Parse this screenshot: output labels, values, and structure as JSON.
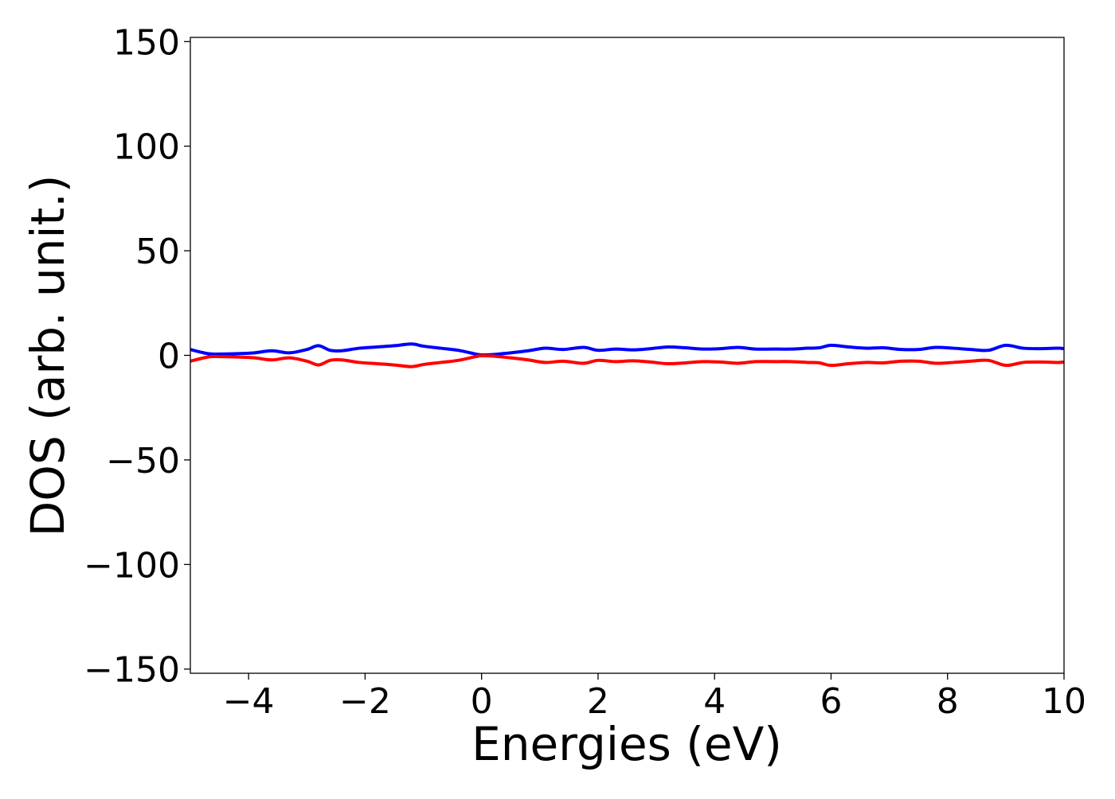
{
  "chart_data": {
    "type": "line",
    "title": "",
    "xlabel": "Energies (eV)",
    "ylabel": "DOS (arb. unit.)",
    "xlim": [
      -5,
      10
    ],
    "ylim": [
      -152,
      152
    ],
    "grid": false,
    "legend": "none",
    "xticks": [
      -4,
      -2,
      0,
      2,
      4,
      6,
      8,
      10
    ],
    "xtick_labels": [
      "−4",
      "−2",
      "0",
      "2",
      "4",
      "6",
      "8",
      "10"
    ],
    "yticks": [
      150,
      100,
      50,
      0,
      -50,
      -100,
      -150
    ],
    "ytick_labels": [
      "150",
      "100",
      "50",
      "0",
      "−50",
      "−100",
      "−150"
    ],
    "series": [
      {
        "color": "#0000ff",
        "x": [
          -5.0,
          -4.7,
          -4.5,
          -4.2,
          -3.9,
          -3.6,
          -3.3,
          -3.0,
          -2.8,
          -2.6,
          -2.4,
          -2.1,
          -1.8,
          -1.5,
          -1.2,
          -1.0,
          -0.7,
          -0.4,
          -0.1,
          0.0,
          0.2,
          0.5,
          0.8,
          1.1,
          1.4,
          1.75,
          2.0,
          2.3,
          2.6,
          2.9,
          3.2,
          3.5,
          3.8,
          4.1,
          4.4,
          4.7,
          5.0,
          5.3,
          5.6,
          5.8,
          6.0,
          6.3,
          6.6,
          6.9,
          7.2,
          7.5,
          7.8,
          8.1,
          8.4,
          8.7,
          9.0,
          9.3,
          9.6,
          9.9,
          10.0
        ],
        "y": [
          2.8,
          0.8,
          0.6,
          0.8,
          1.2,
          2.2,
          1.2,
          2.8,
          4.6,
          2.4,
          2.2,
          3.4,
          4.0,
          4.6,
          5.4,
          4.4,
          3.4,
          2.4,
          0.6,
          0.2,
          0.4,
          1.2,
          2.2,
          3.4,
          2.8,
          3.8,
          2.4,
          3.0,
          2.6,
          3.2,
          4.0,
          3.6,
          3.0,
          3.2,
          3.8,
          3.0,
          3.0,
          3.0,
          3.4,
          3.6,
          4.8,
          4.0,
          3.4,
          3.6,
          2.8,
          2.8,
          3.8,
          3.4,
          2.8,
          2.4,
          4.8,
          3.4,
          3.2,
          3.4,
          3.2
        ]
      },
      {
        "color": "#ff0000",
        "x": [
          -5.0,
          -4.7,
          -4.5,
          -4.2,
          -3.9,
          -3.6,
          -3.3,
          -3.0,
          -2.8,
          -2.6,
          -2.4,
          -2.1,
          -1.8,
          -1.5,
          -1.2,
          -1.0,
          -0.7,
          -0.4,
          -0.1,
          0.0,
          0.2,
          0.5,
          0.8,
          1.1,
          1.4,
          1.75,
          2.0,
          2.3,
          2.6,
          2.9,
          3.2,
          3.5,
          3.8,
          4.1,
          4.4,
          4.7,
          5.0,
          5.3,
          5.6,
          5.8,
          6.0,
          6.3,
          6.6,
          6.9,
          7.2,
          7.5,
          7.8,
          8.1,
          8.4,
          8.7,
          9.0,
          9.3,
          9.6,
          9.9,
          10.0
        ],
        "y": [
          -2.8,
          -0.8,
          -0.6,
          -0.8,
          -1.2,
          -2.2,
          -1.2,
          -2.8,
          -4.6,
          -2.4,
          -2.2,
          -3.4,
          -4.0,
          -4.6,
          -5.4,
          -4.4,
          -3.4,
          -2.4,
          -0.6,
          -0.2,
          -0.4,
          -1.2,
          -2.2,
          -3.4,
          -2.8,
          -3.8,
          -2.4,
          -3.0,
          -2.6,
          -3.2,
          -4.0,
          -3.6,
          -3.0,
          -3.2,
          -3.8,
          -3.0,
          -3.0,
          -3.0,
          -3.4,
          -3.6,
          -4.8,
          -4.0,
          -3.4,
          -3.6,
          -2.8,
          -2.8,
          -3.8,
          -3.4,
          -2.8,
          -2.4,
          -4.8,
          -3.4,
          -3.2,
          -3.4,
          -3.2
        ]
      }
    ]
  }
}
